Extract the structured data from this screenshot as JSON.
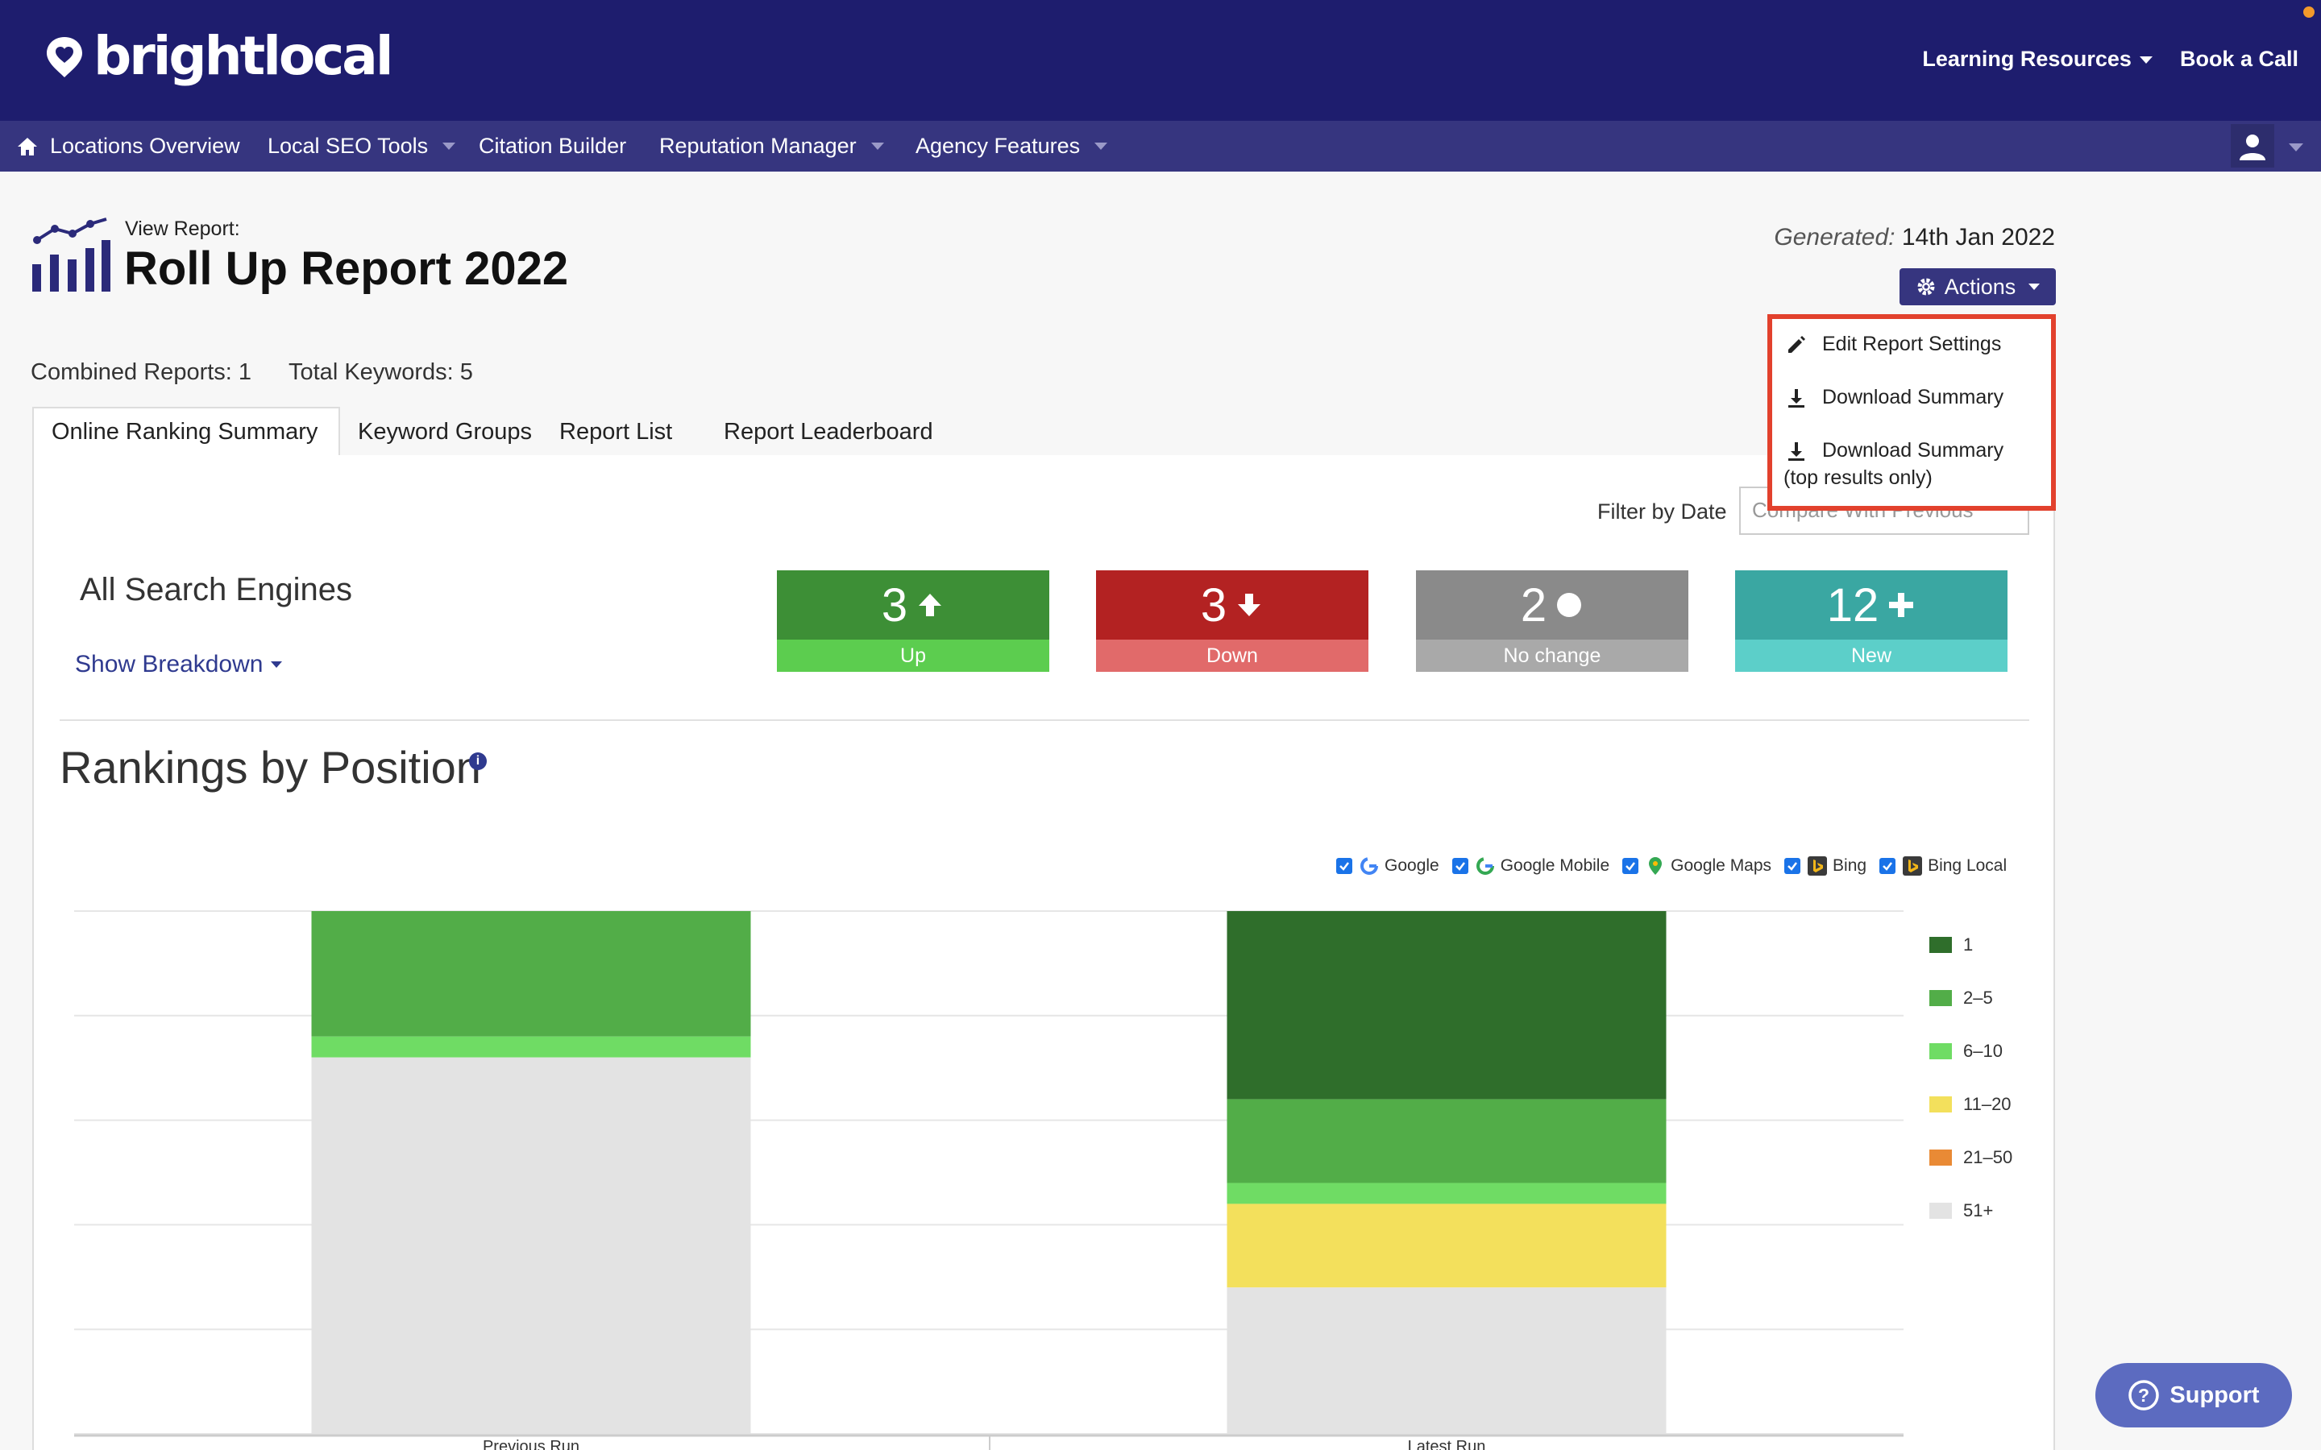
{
  "brand": {
    "name": "brightlocal"
  },
  "top_links": {
    "learning": "Learning Resources",
    "book": "Book a Call"
  },
  "nav": {
    "locations": "Locations Overview",
    "local_seo": "Local SEO Tools",
    "citation": "Citation Builder",
    "reputation": "Reputation Manager",
    "agency": "Agency Features"
  },
  "report": {
    "view_label": "View Report:",
    "title": "Roll Up Report 2022",
    "generated_label": "Generated:",
    "generated_date": "14th Jan 2022",
    "actions_label": "Actions",
    "combined": "Combined Reports: 1",
    "total": "Total Keywords: 5"
  },
  "menu": {
    "edit": "Edit Report Settings",
    "download": "Download Summary",
    "download_top": "Download Summary",
    "download_top_sub": "(top results only)"
  },
  "tabs": [
    "Online Ranking Summary",
    "Keyword Groups",
    "Report List",
    "Report Leaderboard"
  ],
  "filter": {
    "label": "Filter by Date",
    "value": "Compare With Previous"
  },
  "summary": {
    "engines_label": "All Search Engines",
    "breakdown": "Show Breakdown",
    "stats": [
      {
        "value": "3",
        "label": "Up",
        "top": "#3d8f36",
        "bottom": "#5ccd4f",
        "icon": "arrow-up-icon"
      },
      {
        "value": "3",
        "label": "Down",
        "top": "#b32222",
        "bottom": "#e16a6a",
        "icon": "arrow-down-icon"
      },
      {
        "value": "2",
        "label": "No change",
        "top": "#8a8a8a",
        "bottom": "#a9a9a9",
        "icon": "dot-icon"
      },
      {
        "value": "12",
        "label": "New",
        "top": "#3aa7a2",
        "bottom": "#5ccfc9",
        "icon": "plus-icon"
      }
    ]
  },
  "rankings": {
    "title": "Rankings by Position"
  },
  "engines": [
    "Google",
    "Google Mobile",
    "Google Maps",
    "Bing",
    "Bing Local"
  ],
  "chart_data": {
    "type": "bar",
    "stacked": true,
    "categories": [
      "Previous Run",
      "Latest Run"
    ],
    "series": [
      {
        "name": "1",
        "color": "#2f6e2b",
        "values": [
          0,
          36
        ]
      },
      {
        "name": "2-5",
        "color": "#52ad48",
        "values": [
          24,
          16
        ]
      },
      {
        "name": "6-10",
        "color": "#6fdc64",
        "values": [
          4,
          4
        ]
      },
      {
        "name": "11-20",
        "color": "#f3e05c",
        "values": [
          0,
          16
        ]
      },
      {
        "name": "21-50",
        "color": "#e98a35",
        "values": [
          0,
          0
        ]
      },
      {
        "name": "51+",
        "color": "#e3e3e3",
        "values": [
          72,
          28
        ]
      }
    ]
  },
  "support": {
    "label": "Support"
  }
}
